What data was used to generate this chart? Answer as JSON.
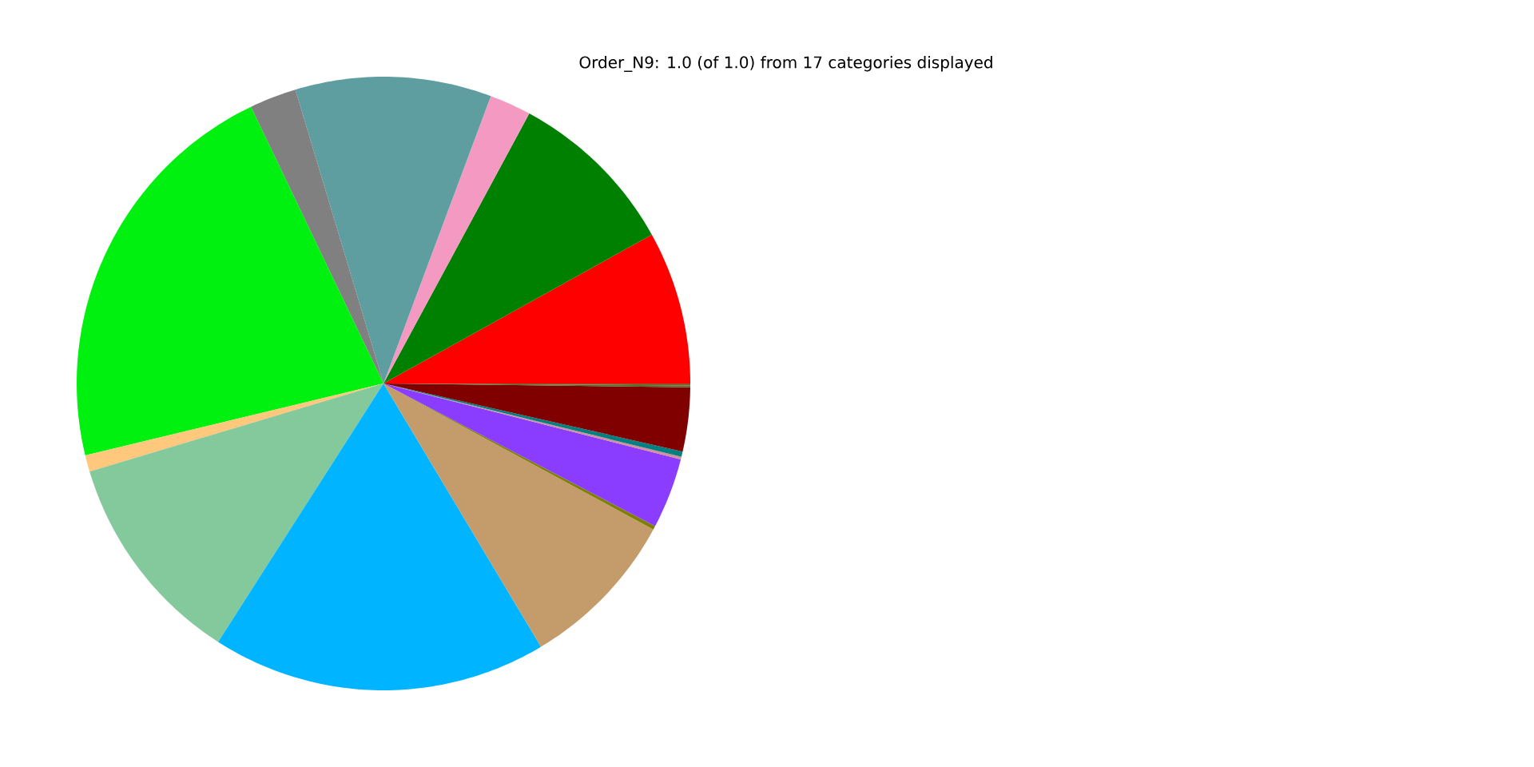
{
  "chart_data": {
    "type": "pie",
    "title": "Order_N9: 1.0 (of 1.0) from 17 categories displayed",
    "categories": [
      null,
      null,
      null,
      null,
      null,
      null,
      null,
      null,
      null,
      null,
      null,
      null,
      null,
      null,
      null,
      null,
      null
    ],
    "values": [
      8.06,
      9.06,
      2.19,
      10.33,
      2.47,
      21.66,
      0.86,
      11.31,
      17.64,
      8.53,
      0.19,
      3.72,
      0.14,
      0.28,
      3.36,
      0.1,
      0.1
    ],
    "colors": [
      "#ff0000",
      "#008000",
      "#f49ac2",
      "#5f9ea0",
      "#808080",
      "#00f010",
      "#ffc87c",
      "#84c99b",
      "#00b4ff",
      "#c49c6b",
      "#808000",
      "#8b3dff",
      "#d38f9a",
      "#008080",
      "#800000",
      "#556b2f",
      "#8b5a2b"
    ]
  }
}
